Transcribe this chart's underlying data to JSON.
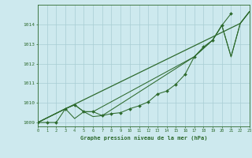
{
  "title": "Graphe pression niveau de la mer (hPa)",
  "bg_color": "#cde9ee",
  "grid_color": "#a8cdd4",
  "line_color": "#2d6a2d",
  "x_ticks": [
    0,
    1,
    2,
    3,
    4,
    5,
    6,
    7,
    8,
    9,
    10,
    11,
    12,
    13,
    14,
    15,
    16,
    17,
    18,
    19,
    20,
    21,
    22,
    23
  ],
  "xlim": [
    0,
    23
  ],
  "ylim": [
    1008.8,
    1015.0
  ],
  "yticks": [
    1009,
    1010,
    1011,
    1012,
    1013,
    1014
  ],
  "series_marker": {
    "x": [
      0,
      1,
      2,
      3,
      4,
      5,
      6,
      7,
      8,
      9,
      10,
      11,
      12,
      13,
      14,
      15,
      16,
      17,
      18,
      19,
      20,
      21,
      22,
      23
    ],
    "y": [
      1009.0,
      1009.0,
      1009.0,
      1009.7,
      1009.9,
      1009.55,
      1009.55,
      1009.35,
      1009.45,
      1009.5,
      1009.7,
      1009.85,
      1010.05,
      1010.45,
      1010.6,
      1010.95,
      1011.45,
      1012.35,
      1012.85,
      1013.2,
      1013.95,
      1014.55,
      null,
      null
    ]
  },
  "series_upper": {
    "x": [
      0,
      3,
      22,
      23
    ],
    "y": [
      1009.0,
      1009.7,
      1014.05,
      1014.65
    ]
  },
  "series_mid1": {
    "x": [
      0,
      3,
      4,
      5,
      6,
      17,
      19,
      20,
      21,
      22,
      23
    ],
    "y": [
      1009.0,
      1009.7,
      1009.9,
      1009.55,
      1009.55,
      1012.35,
      1013.2,
      1013.95,
      1012.35,
      1014.05,
      1014.65
    ]
  },
  "series_mid2": {
    "x": [
      0,
      3,
      4,
      5,
      6,
      7,
      17,
      19,
      20,
      21,
      22,
      23
    ],
    "y": [
      1009.0,
      1009.7,
      1009.2,
      1009.55,
      1009.3,
      1009.35,
      1012.35,
      1013.2,
      1013.95,
      1012.35,
      1014.05,
      1014.65
    ]
  }
}
